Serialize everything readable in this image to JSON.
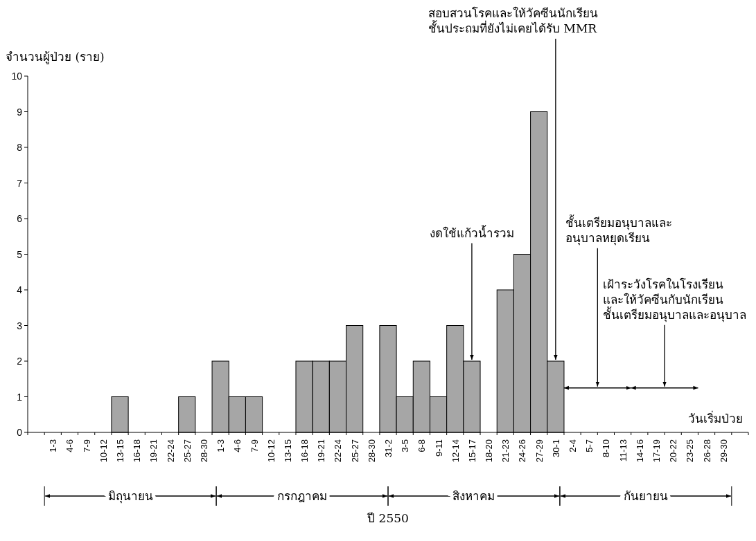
{
  "chart_data": {
    "type": "bar",
    "ylabel": "จำนวนผู้ป่วย (ราย)",
    "xlabel": "ปี 2550",
    "categories": [
      null,
      "1-3",
      "4-6",
      "7-9",
      "10-12",
      "13-15",
      "16-18",
      "19-21",
      "22-24",
      "25-27",
      "28-30",
      "1-3",
      "4-6",
      "7-9",
      "10-12",
      "13-15",
      "16-18",
      "19-21",
      "22-24",
      "25-27",
      "28-30",
      "31-2",
      "3-5",
      "6-8",
      "9-11",
      "12-14",
      "15-17",
      "18-20",
      "21-23",
      "24-26",
      "27-29",
      "30-1",
      "2-4",
      "5-7",
      "8-10",
      "11-13",
      "14-16",
      "17-19",
      "20-22",
      "23-25",
      "26-28",
      "29-30",
      null
    ],
    "values": [
      0,
      0,
      0,
      0,
      0,
      1,
      0,
      0,
      0,
      1,
      0,
      2,
      1,
      1,
      0,
      0,
      2,
      2,
      2,
      3,
      0,
      3,
      1,
      2,
      1,
      3,
      2,
      0,
      4,
      5,
      9,
      2,
      0,
      0,
      0,
      0,
      0,
      0,
      0,
      0,
      0,
      0,
      0
    ],
    "color": "#a6a6a6",
    "ylim": [
      0,
      10
    ],
    "yticks": [
      0,
      1,
      2,
      3,
      4,
      5,
      6,
      7,
      8,
      9,
      10
    ],
    "annotations": [
      {
        "text": "งดใช้แก้วน้ำรวม",
        "x": "15-17",
        "y": 2
      },
      "สอบสวนโรคและให้วัคซีนนักเรียน\nชั้นประถมที่ยังไม่เคยได้รับ MMR",
      "มิถุนายน",
      "กรกฎาคม",
      "สิงหาคม",
      "กันยายน",
      "ชั้นเตรียมอนุบาลและ\nอนุบาลหยุดเรียน",
      "เฝ้าระวังโรคในโรงเรียน\nและให้วัคซีนกับนักเรียน\nชั้นเตรียมอนุบาลและอนุบาล",
      "วันเริ่มป่วย"
    ]
  }
}
